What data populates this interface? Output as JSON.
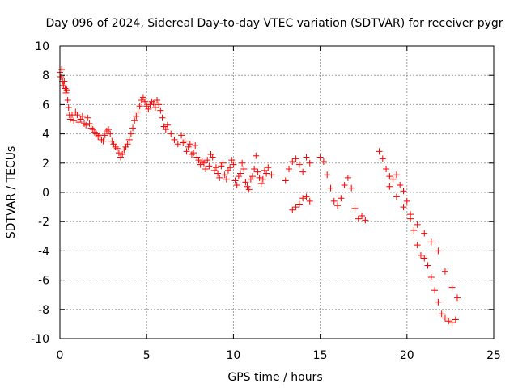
{
  "chart_data": {
    "type": "scatter",
    "title": "Day 096 of 2024, Sidereal Day-to-day VTEC variation (SDTVAR) for receiver pygr",
    "xlabel": "GPS time / hours",
    "ylabel": "SDTVAR / TECUs",
    "xlim": [
      0,
      25
    ],
    "ylim": [
      -10,
      10
    ],
    "xticks": [
      0,
      5,
      10,
      15,
      20,
      25
    ],
    "yticks": [
      -10,
      -8,
      -6,
      -4,
      -2,
      0,
      2,
      4,
      6,
      8,
      10
    ],
    "grid": true,
    "marker": "+",
    "color": "#ff0000",
    "series": [
      {
        "name": "SDTVAR",
        "x": [
          0.0,
          0.05,
          0.1,
          0.15,
          0.2,
          0.25,
          0.3,
          0.35,
          0.4,
          0.45,
          0.5,
          0.55,
          0.6,
          0.7,
          0.8,
          0.9,
          1.0,
          1.1,
          1.2,
          1.3,
          1.4,
          1.5,
          1.6,
          1.7,
          1.8,
          1.9,
          2.0,
          2.1,
          2.2,
          2.3,
          2.4,
          2.5,
          2.6,
          2.7,
          2.8,
          2.9,
          3.0,
          3.1,
          3.2,
          3.3,
          3.4,
          3.5,
          3.6,
          3.7,
          3.8,
          3.9,
          4.0,
          4.1,
          4.2,
          4.3,
          4.4,
          4.5,
          4.6,
          4.7,
          4.8,
          4.9,
          5.0,
          5.1,
          5.2,
          5.3,
          5.4,
          5.5,
          5.6,
          5.7,
          5.8,
          5.9,
          6.0,
          6.1,
          6.2,
          6.4,
          6.6,
          6.8,
          7.0,
          7.1,
          7.2,
          7.3,
          7.4,
          7.5,
          7.6,
          7.7,
          7.8,
          7.9,
          8.0,
          8.1,
          8.2,
          8.3,
          8.4,
          8.5,
          8.6,
          8.7,
          8.8,
          8.9,
          9.0,
          9.1,
          9.2,
          9.3,
          9.4,
          9.5,
          9.6,
          9.7,
          9.8,
          9.9,
          10.0,
          10.1,
          10.2,
          10.3,
          10.4,
          10.5,
          10.6,
          10.7,
          10.8,
          10.9,
          11.0,
          11.1,
          11.2,
          11.3,
          11.4,
          11.5,
          11.6,
          11.7,
          11.8,
          11.9,
          12.0,
          12.2,
          13.0,
          13.2,
          13.4,
          13.6,
          13.8,
          14.0,
          14.2,
          14.4,
          13.4,
          13.6,
          13.8,
          14.0,
          14.2,
          14.4,
          15.0,
          15.2,
          15.4,
          15.6,
          15.8,
          16.0,
          16.2,
          16.4,
          16.6,
          16.8,
          17.0,
          17.2,
          17.4,
          17.6,
          18.4,
          18.6,
          18.8,
          19.0,
          19.2,
          19.4,
          19.6,
          19.8,
          20.0,
          20.2,
          20.4,
          20.6,
          20.8,
          21.0,
          21.2,
          21.4,
          21.6,
          21.8,
          22.0,
          22.2,
          22.4,
          22.6,
          22.8,
          19.0,
          19.4,
          19.8,
          20.2,
          20.6,
          21.0,
          21.4,
          21.8,
          22.2,
          22.6,
          22.9
        ],
        "y": [
          8.2,
          7.9,
          8.4,
          7.6,
          7.3,
          7.6,
          7.1,
          6.8,
          7.0,
          6.3,
          5.8,
          5.3,
          5.0,
          5.3,
          4.9,
          5.5,
          5.3,
          4.8,
          5.0,
          5.2,
          4.7,
          4.6,
          5.1,
          4.7,
          4.4,
          4.3,
          4.1,
          4.0,
          3.8,
          3.9,
          3.6,
          3.5,
          3.9,
          4.2,
          4.3,
          4.0,
          3.5,
          3.3,
          3.1,
          3.0,
          2.7,
          2.4,
          2.6,
          2.9,
          3.1,
          3.3,
          3.6,
          4.0,
          4.4,
          4.9,
          5.2,
          5.5,
          5.9,
          6.3,
          6.5,
          6.2,
          5.9,
          5.7,
          6.0,
          6.2,
          6.1,
          5.8,
          6.3,
          6.0,
          5.6,
          5.1,
          4.5,
          4.3,
          4.6,
          4.0,
          3.6,
          3.3,
          3.9,
          3.4,
          3.5,
          2.8,
          3.1,
          3.3,
          2.6,
          2.7,
          3.2,
          2.4,
          2.2,
          1.9,
          2.1,
          2.0,
          1.6,
          2.2,
          1.8,
          2.6,
          2.4,
          1.5,
          1.7,
          1.3,
          1.0,
          1.8,
          2.0,
          1.2,
          0.9,
          1.5,
          1.7,
          2.2,
          1.9,
          0.8,
          0.5,
          1.1,
          1.3,
          2.0,
          1.6,
          0.7,
          0.4,
          0.2,
          0.9,
          1.1,
          1.6,
          2.5,
          1.4,
          1.0,
          0.6,
          0.9,
          1.5,
          1.3,
          1.7,
          1.2,
          0.8,
          1.6,
          2.1,
          2.3,
          1.9,
          1.4,
          2.4,
          2.0,
          -1.2,
          -1.0,
          -0.8,
          -0.4,
          -0.3,
          -0.6,
          2.4,
          2.1,
          1.2,
          0.3,
          -0.6,
          -0.9,
          -0.4,
          0.5,
          1.0,
          0.3,
          -1.1,
          -1.8,
          -1.6,
          -1.9,
          2.8,
          2.3,
          1.6,
          1.1,
          0.9,
          1.2,
          0.5,
          0.1,
          -0.6,
          -1.5,
          -2.6,
          -3.6,
          -4.3,
          -4.5,
          -5.0,
          -5.8,
          -6.7,
          -7.5,
          -8.3,
          -8.6,
          -8.8,
          -8.9,
          -8.7,
          0.4,
          -0.3,
          -1.0,
          -1.8,
          -2.2,
          -2.8,
          -3.4,
          -4.0,
          -5.4,
          -6.5,
          -7.2
        ]
      }
    ]
  }
}
